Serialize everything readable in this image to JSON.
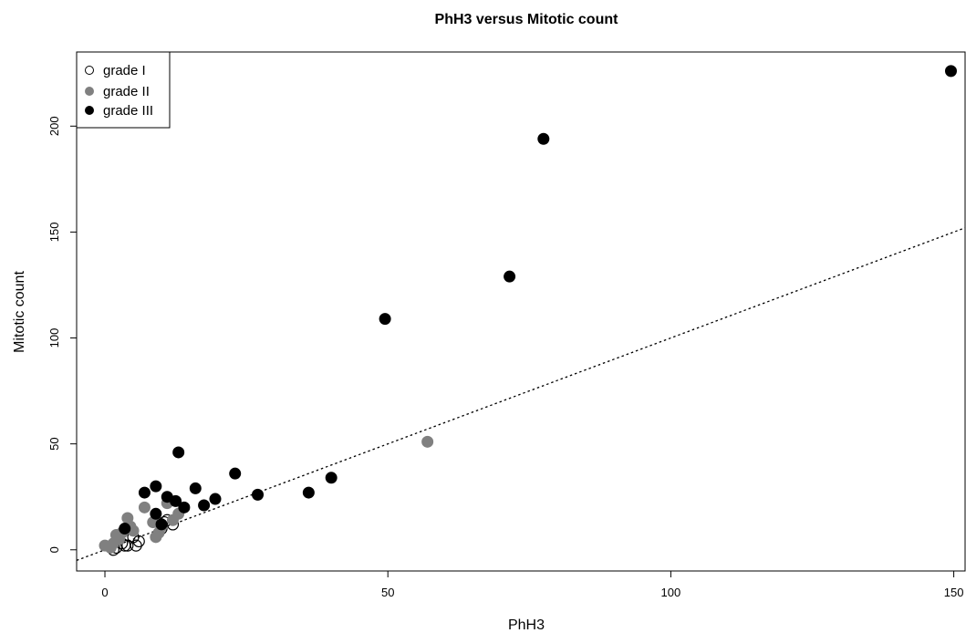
{
  "chart_data": {
    "type": "scatter",
    "title": "PhH3 versus Mitotic count",
    "xlabel": "PhH3",
    "ylabel": "Mitotic count",
    "xlim": [
      -5,
      152
    ],
    "ylim": [
      -10,
      235
    ],
    "xticks": [
      0,
      50,
      100,
      150
    ],
    "yticks": [
      0,
      50,
      100,
      150,
      200
    ],
    "reference_line": {
      "type": "identity",
      "style": "dotted",
      "color": "#000000"
    },
    "grid": false,
    "legend_position": "top-left",
    "series": [
      {
        "name": "grade I",
        "marker": "open-circle",
        "color": "#000000",
        "points": [
          [
            1.5,
            0
          ],
          [
            2,
            1
          ],
          [
            3,
            3
          ],
          [
            4,
            2
          ],
          [
            5,
            6
          ],
          [
            5.5,
            2
          ],
          [
            6,
            4
          ],
          [
            10,
            10
          ],
          [
            10.5,
            13
          ],
          [
            11,
            14
          ],
          [
            12,
            12
          ],
          [
            3.5,
            2
          ]
        ]
      },
      {
        "name": "grade II",
        "marker": "filled-circle",
        "color": "#808080",
        "points": [
          [
            0,
            2
          ],
          [
            1,
            1
          ],
          [
            1.5,
            3
          ],
          [
            2,
            7
          ],
          [
            2.5,
            5
          ],
          [
            3,
            8
          ],
          [
            4,
            15
          ],
          [
            4.5,
            11
          ],
          [
            5,
            9
          ],
          [
            7,
            20
          ],
          [
            9,
            6
          ],
          [
            9.5,
            8
          ],
          [
            10,
            11
          ],
          [
            11,
            22
          ],
          [
            12,
            14
          ],
          [
            13,
            17
          ],
          [
            8.5,
            13
          ],
          [
            57,
            51
          ]
        ]
      },
      {
        "name": "grade III",
        "marker": "filled-circle",
        "color": "#000000",
        "points": [
          [
            3.5,
            10
          ],
          [
            7,
            27
          ],
          [
            9,
            30
          ],
          [
            9,
            17
          ],
          [
            10,
            12
          ],
          [
            11,
            25
          ],
          [
            12.5,
            23
          ],
          [
            13,
            46
          ],
          [
            14,
            20
          ],
          [
            16,
            29
          ],
          [
            17.5,
            21
          ],
          [
            19.5,
            24
          ],
          [
            23,
            36
          ],
          [
            27,
            26
          ],
          [
            36,
            27
          ],
          [
            40,
            34
          ],
          [
            49.5,
            109
          ],
          [
            71.5,
            129
          ],
          [
            77.5,
            194
          ],
          [
            149.5,
            226
          ]
        ]
      }
    ]
  }
}
